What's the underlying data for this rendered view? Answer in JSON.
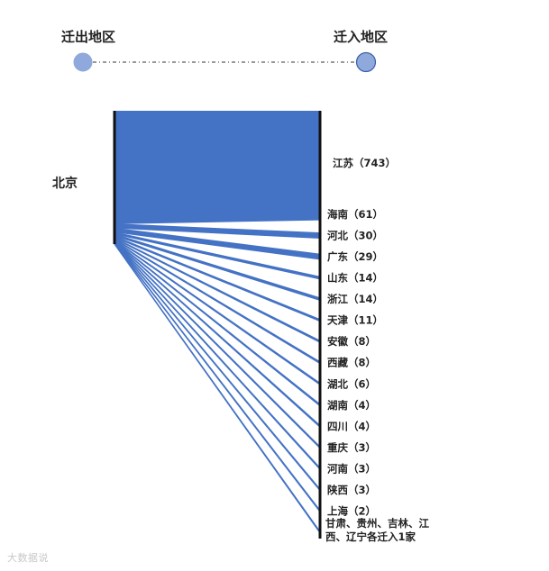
{
  "legend": {
    "from_label": "迁出地区",
    "to_label": "迁入地区",
    "from_color": "#8fa9dc",
    "to_color": "#8fa9dc"
  },
  "watermark": "大数据说",
  "chart_data": {
    "type": "sankey",
    "title": "",
    "source": "北京",
    "flow_color": "#4472c4",
    "links": [
      {
        "target": "江苏",
        "value": 743,
        "label": "江苏（743）"
      },
      {
        "target": "海南",
        "value": 61,
        "label": "海南（61）"
      },
      {
        "target": "河北",
        "value": 30,
        "label": "河北（30）"
      },
      {
        "target": "广东",
        "value": 29,
        "label": "广东（29）"
      },
      {
        "target": "山东",
        "value": 14,
        "label": "山东（14）"
      },
      {
        "target": "浙江",
        "value": 14,
        "label": "浙江（14）"
      },
      {
        "target": "天津",
        "value": 11,
        "label": "天津（11）"
      },
      {
        "target": "安徽",
        "value": 8,
        "label": "安徽（8）"
      },
      {
        "target": "西藏",
        "value": 8,
        "label": "西藏（8）"
      },
      {
        "target": "湖北",
        "value": 6,
        "label": "湖北（6）"
      },
      {
        "target": "湖南",
        "value": 4,
        "label": "湖南（4）"
      },
      {
        "target": "四川",
        "value": 4,
        "label": "四川（4）"
      },
      {
        "target": "重庆",
        "value": 3,
        "label": "重庆（3）"
      },
      {
        "target": "河南",
        "value": 3,
        "label": "河南（3）"
      },
      {
        "target": "陕西",
        "value": 3,
        "label": "陕西（3）"
      },
      {
        "target": "上海",
        "value": 2,
        "label": "上海（2）"
      },
      {
        "target": "甘肃、贵州、吉林、江西、辽宁",
        "value": 1,
        "count": 5,
        "label_lines": [
          "甘肃、贵州、吉林、江",
          "西、辽宁各迁入1家"
        ]
      }
    ]
  }
}
